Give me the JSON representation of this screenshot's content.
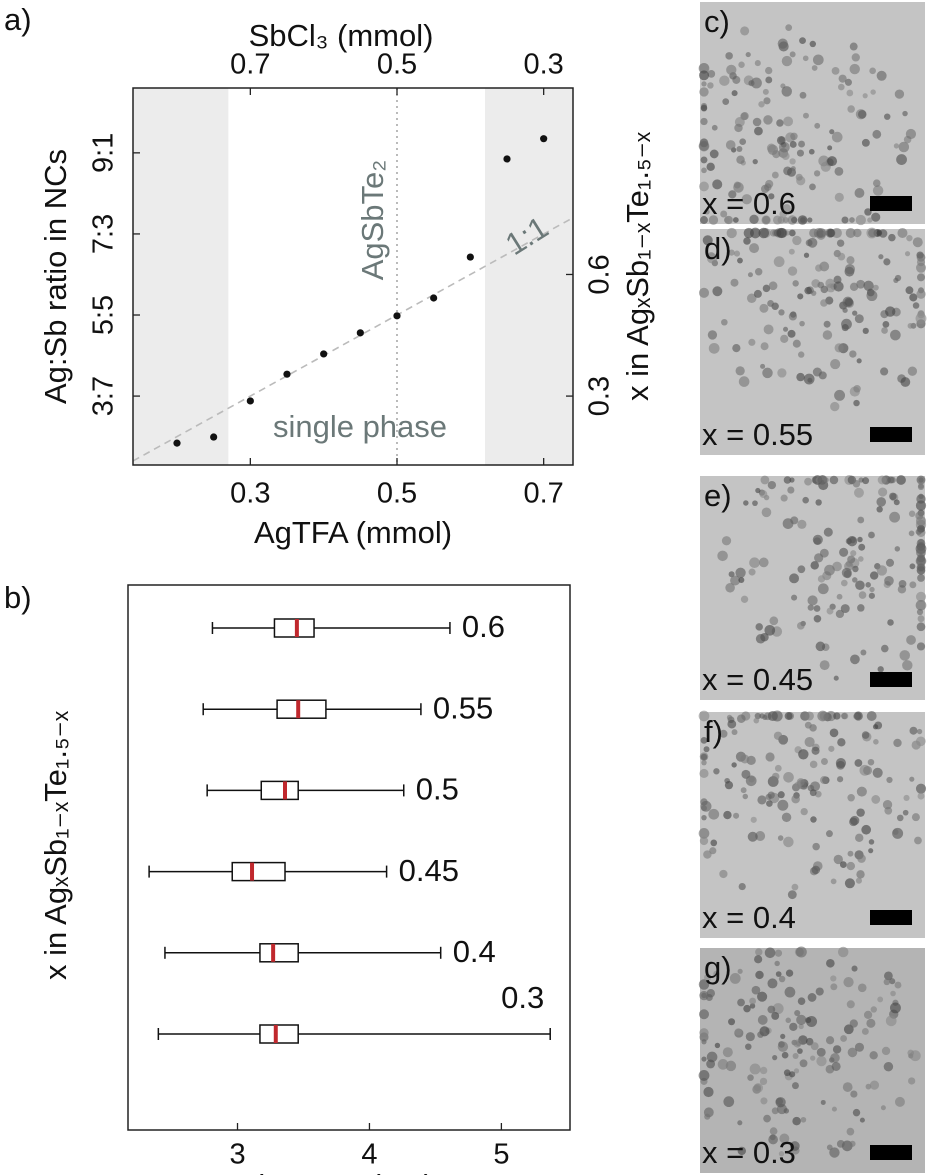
{
  "chart_data": [
    {
      "type": "scatter",
      "panel_label": "a)",
      "x_label": "AgTFA (mmol)",
      "x2_label": "SbCl₃ (mmol)",
      "y_label": "Ag:Sb ratio in NCs",
      "y2_label": "x in AgₓSb₁₋ₓTe₁.₅₋ₓ",
      "x": [
        0.2,
        0.25,
        0.3,
        0.35,
        0.4,
        0.45,
        0.5,
        0.55,
        0.6,
        0.65,
        0.7
      ],
      "values": [
        0.184,
        0.199,
        0.288,
        0.354,
        0.404,
        0.456,
        0.498,
        0.542,
        0.643,
        0.885,
        0.935
      ],
      "color": "#111111",
      "xlim": [
        0.14,
        0.74
      ],
      "xticks": [
        0.3,
        0.5,
        0.7
      ],
      "x2lim": [
        0.86,
        0.26
      ],
      "x2ticks": [
        0.7,
        0.5,
        0.3
      ],
      "ylim": [
        0.13,
        1.06
      ],
      "yticks": [
        {
          "value": 0.3,
          "label": "3:7"
        },
        {
          "value": 0.5,
          "label": "5:5"
        },
        {
          "value": 0.7,
          "label": "7:3"
        },
        {
          "value": 0.9,
          "label": "9:1"
        }
      ],
      "y2lim": [
        0.13,
        1.06
      ],
      "y2ticks": [
        0.3,
        0.6
      ],
      "shaded_regions": [
        [
          0.14,
          0.27
        ],
        [
          0.62,
          0.74
        ]
      ],
      "shade_color": "#ececec",
      "vline": {
        "value": 0.5,
        "label": "AgSbTe₂"
      },
      "reference_label": "1:1",
      "region_label": "single phase",
      "annotation_color": "#6b7878"
    },
    {
      "type": "box",
      "panel_label": "b)",
      "x_label": "Diameter (nm)",
      "y_label": "x in AgₓSb₁₋ₓTe₁.₅₋ₓ",
      "categories": [
        "0.6",
        "0.55",
        "0.5",
        "0.45",
        "0.4",
        "0.3"
      ],
      "whisker_low": [
        2.81,
        2.74,
        2.77,
        2.33,
        2.45,
        2.4
      ],
      "q1": [
        3.28,
        3.3,
        3.18,
        2.96,
        3.17,
        3.17
      ],
      "median": [
        3.45,
        3.46,
        3.36,
        3.11,
        3.27,
        3.29
      ],
      "q3": [
        3.58,
        3.67,
        3.46,
        3.36,
        3.46,
        3.46
      ],
      "whisker_high": [
        4.61,
        4.39,
        4.26,
        4.13,
        4.54,
        5.37
      ],
      "color": "#111111",
      "median_color": "#c0282d",
      "xlim": [
        2.17,
        5.52
      ],
      "xticks": [
        3,
        4,
        5
      ]
    }
  ],
  "tem_images": [
    {
      "label": "c)",
      "caption": "x = 0.6"
    },
    {
      "label": "d)",
      "caption": "x = 0.55"
    },
    {
      "label": "e)",
      "caption": "x = 0.45"
    },
    {
      "label": "f)",
      "caption": "x = 0.4"
    },
    {
      "label": "g)",
      "caption": "x = 0.3"
    }
  ]
}
